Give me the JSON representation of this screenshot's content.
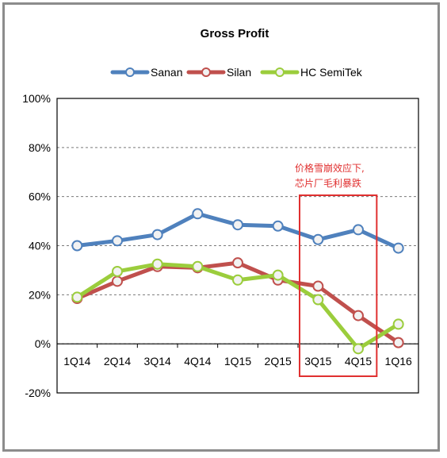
{
  "chart_data": {
    "type": "line",
    "title": "Gross Profit",
    "categories": [
      "1Q14",
      "2Q14",
      "3Q14",
      "4Q14",
      "1Q15",
      "2Q15",
      "3Q15",
      "4Q15",
      "1Q16"
    ],
    "series": [
      {
        "name": "Sanan",
        "color": "#4f81bd",
        "values": [
          40,
          42,
          44.5,
          53,
          48.5,
          48,
          42.5,
          46.5,
          39
        ]
      },
      {
        "name": "Silan",
        "color": "#c0504d",
        "values": [
          18.5,
          25.5,
          31.5,
          31,
          33,
          26,
          23.5,
          11.5,
          0.5
        ]
      },
      {
        "name": "HC SemiTek",
        "color": "#9bcd3c",
        "values": [
          19,
          29.5,
          32.5,
          31.5,
          26,
          28,
          18,
          -2,
          8
        ]
      }
    ],
    "ylim": [
      -20,
      100
    ],
    "yticks": [
      -20,
      0,
      20,
      40,
      60,
      80,
      100
    ],
    "ytick_labels": [
      "-20%",
      "0%",
      "20%",
      "40%",
      "60%",
      "80%",
      "100%"
    ],
    "grid": true,
    "legend_position": "top",
    "annotation": {
      "lines": [
        "价格雪崩效应下,",
        "芯片厂毛利暴跌"
      ],
      "highlight_categories": [
        "3Q15",
        "4Q15"
      ],
      "color": "#e03030"
    }
  }
}
